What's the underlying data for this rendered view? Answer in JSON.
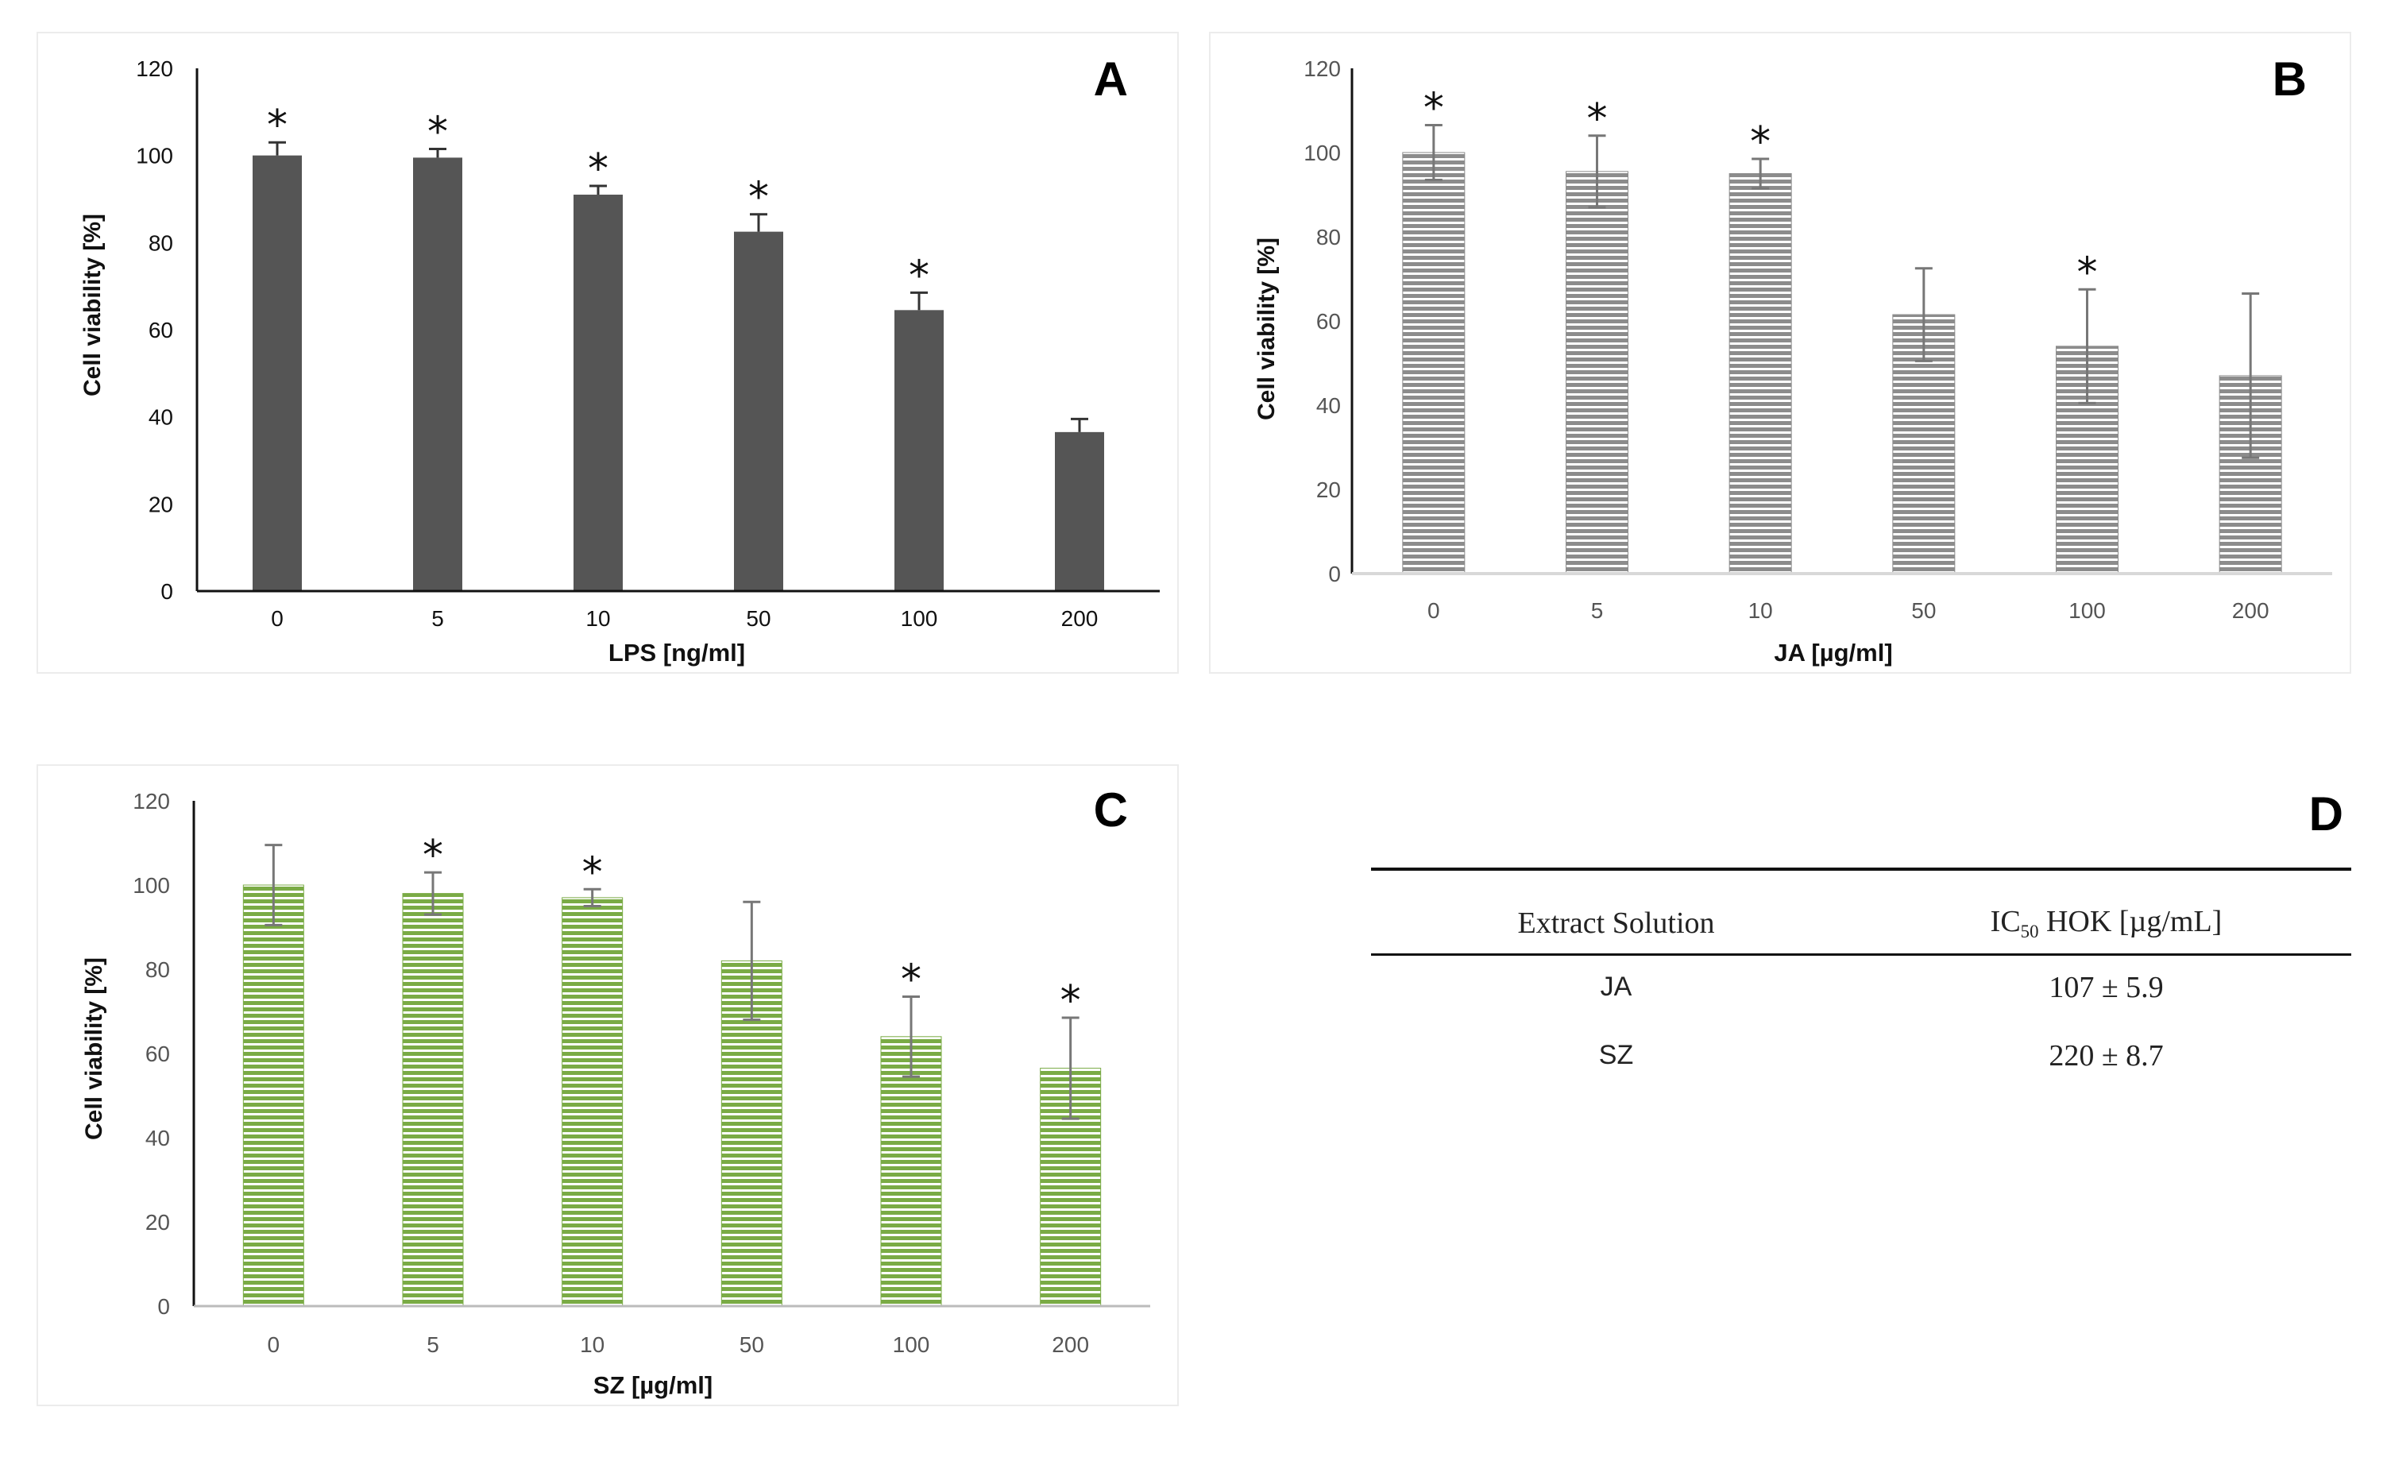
{
  "chart_data": [
    {
      "panel": "A",
      "type": "bar",
      "xlabel": "LPS [ng/ml]",
      "ylabel": "Cell viability  [%]",
      "categories": [
        "0",
        "5",
        "10",
        "50",
        "100",
        "200"
      ],
      "values": [
        100,
        99.5,
        91,
        82.5,
        64.5,
        36.5
      ],
      "errors": [
        3,
        2,
        2,
        4,
        4,
        3
      ],
      "significant": [
        true,
        true,
        true,
        true,
        true,
        false
      ],
      "ylim": [
        0,
        120
      ],
      "yticks": [
        "0",
        "20",
        "40",
        "60",
        "80",
        "100",
        "120"
      ],
      "bar_color": "#555555",
      "pattern": "solid"
    },
    {
      "panel": "B",
      "type": "bar",
      "xlabel": "JA [µg/ml]",
      "ylabel": "Cell viability  [%]",
      "categories": [
        "0",
        "5",
        "10",
        "50",
        "100",
        "200"
      ],
      "values": [
        100,
        95.5,
        95,
        61.5,
        54,
        47
      ],
      "errors": [
        6.5,
        8.5,
        3.5,
        11,
        13.5,
        19.5
      ],
      "significant": [
        true,
        true,
        true,
        false,
        true,
        false
      ],
      "ylim": [
        0,
        120
      ],
      "yticks": [
        "0",
        "20",
        "40",
        "60",
        "80",
        "100",
        "120"
      ],
      "bar_color": "#8c8c8c",
      "pattern": "striped"
    },
    {
      "panel": "C",
      "type": "bar",
      "xlabel": "SZ [µg/ml]",
      "ylabel": "Cell viability [%]",
      "categories": [
        "0",
        "5",
        "10",
        "50",
        "100",
        "200"
      ],
      "values": [
        100,
        98,
        97,
        82,
        64,
        56.5
      ],
      "errors": [
        9.5,
        5,
        2,
        14,
        9.5,
        12
      ],
      "significant": [
        false,
        true,
        true,
        false,
        true,
        true
      ],
      "ylim": [
        0,
        120
      ],
      "yticks": [
        "0",
        "20",
        "40",
        "60",
        "80",
        "100",
        "120"
      ],
      "bar_color": "#7aab45",
      "pattern": "striped"
    }
  ],
  "table_d": {
    "panel": "D",
    "header_left": "Extract Solution",
    "header_right_prefix": "IC",
    "header_right_sub": "50",
    "header_right_suffix": " HOK [µg/mL]",
    "rows": [
      {
        "extract": "JA",
        "ic50": "107 ± 5.9"
      },
      {
        "extract": "SZ",
        "ic50": "220 ± 8.7"
      }
    ]
  },
  "star_symbol": "*"
}
